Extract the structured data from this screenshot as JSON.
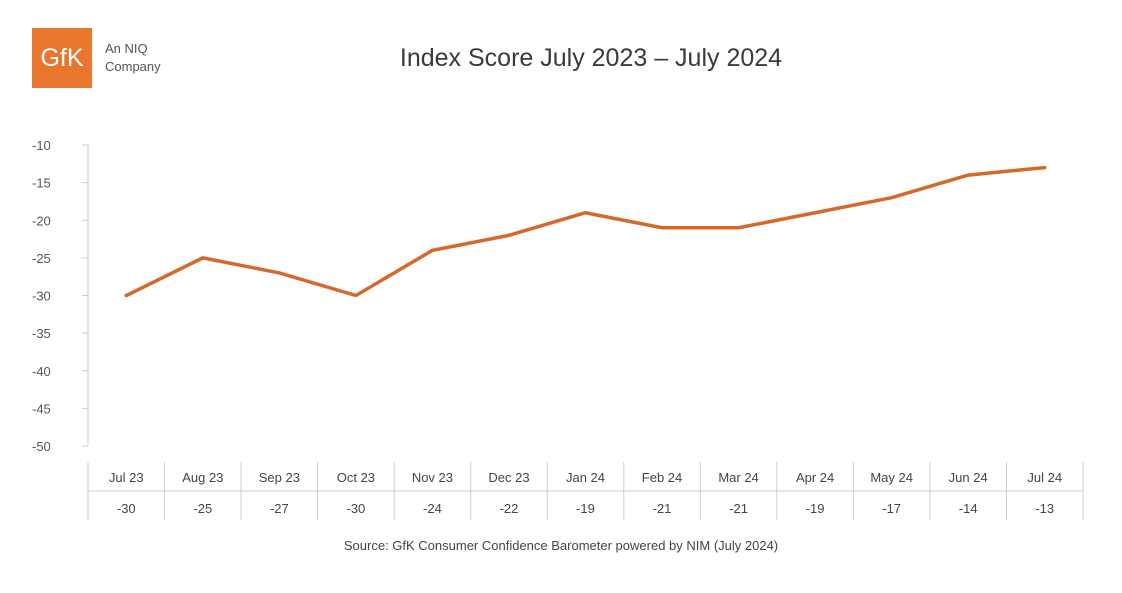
{
  "logo": {
    "mark": "GfK",
    "line1": "An NIQ",
    "line2": "Company",
    "color": "#e8762c"
  },
  "chart_data": {
    "type": "line",
    "title": "Index Score July 2023 – July 2024",
    "categories": [
      "Jul 23",
      "Aug 23",
      "Sep 23",
      "Oct 23",
      "Nov 23",
      "Dec 23",
      "Jan 24",
      "Feb 24",
      "Mar 24",
      "Apr 24",
      "May 24",
      "Jun 24",
      "Jul 24"
    ],
    "series": [
      {
        "values": [
          -30,
          -25,
          -27,
          -30,
          -24,
          -22,
          -19,
          -21,
          -21,
          -19,
          -17,
          -14,
          -13
        ]
      }
    ],
    "data_table_values": [
      "-30",
      "-25",
      "-27",
      "-30",
      "-24",
      "-22",
      "-19",
      "-21",
      "-21",
      "-19",
      "-17",
      "-14",
      "-13"
    ],
    "yticks": [
      "-10",
      "-15",
      "-20",
      "-25",
      "-30",
      "-35",
      "-40",
      "-45",
      "-50"
    ],
    "ylim": [
      -50,
      -10
    ],
    "line_color": "#d4692b",
    "grid": false
  },
  "source": "Source: GfK Consumer Confidence Barometer powered by NIM (July 2024)"
}
